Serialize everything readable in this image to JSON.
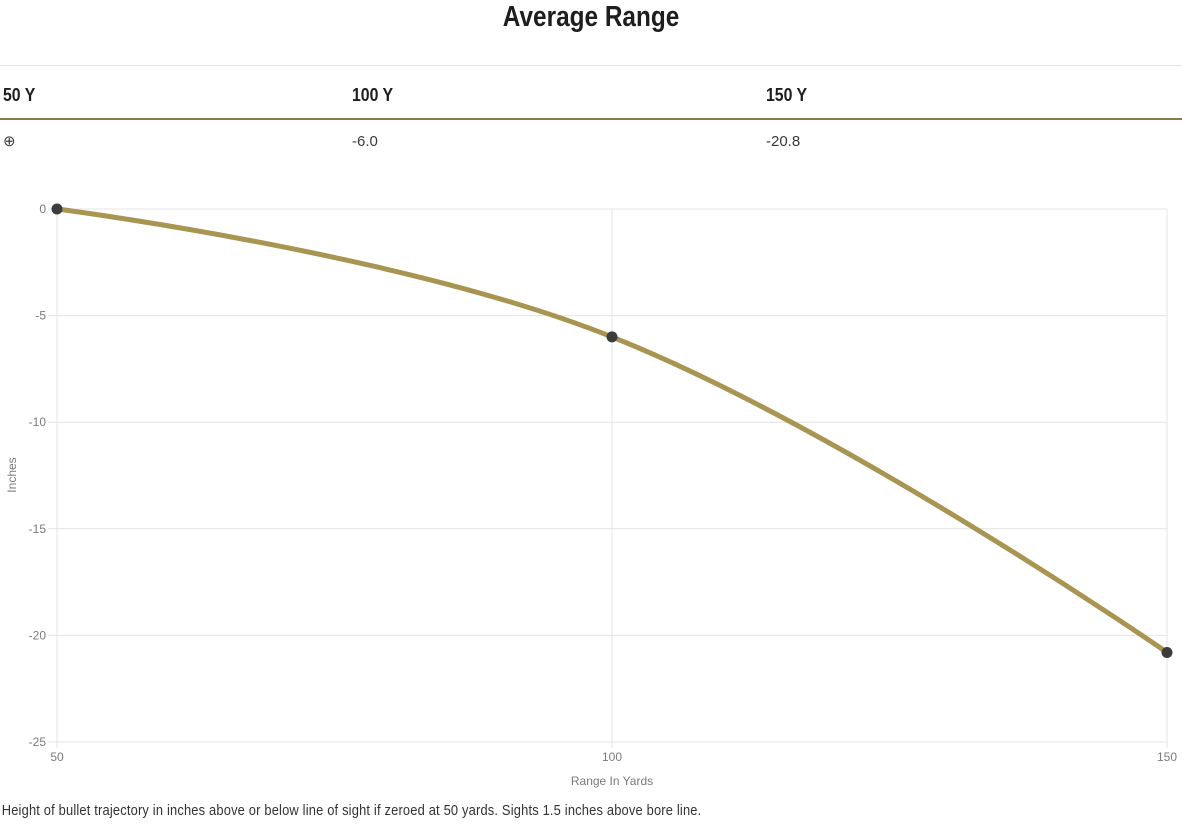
{
  "title": "Average Range",
  "table": {
    "headers": [
      "50 Y",
      "100 Y",
      "150 Y"
    ],
    "values": [
      "⊕",
      "-6.0",
      "-20.8"
    ],
    "zero_symbol_meaning": "zeroed at this range"
  },
  "chart_data": {
    "type": "line",
    "x": [
      50,
      100,
      150
    ],
    "series": [
      {
        "name": "Bullet trajectory",
        "values": [
          0,
          -6.0,
          -20.8
        ]
      }
    ],
    "xlabel": "Range In Yards",
    "ylabel": "Inches",
    "xlim": [
      50,
      150
    ],
    "ylim": [
      -25,
      0
    ],
    "xticks": [
      "50",
      "100",
      "150"
    ],
    "xtick_values": [
      50,
      100,
      150
    ],
    "yticks": [
      "0",
      "-5",
      "-10",
      "-15",
      "-20",
      "-25"
    ],
    "ytick_values": [
      0,
      -5,
      -10,
      -15,
      -20,
      -25
    ],
    "grid": true,
    "legend_position": "none",
    "line_color": "#A89552",
    "marker_color": "#3C3C3C",
    "gridline_color": "#E4E4E4",
    "tick_label_color": "#7A7A7A",
    "line_width": 5,
    "marker_radius": 5.5,
    "curve_tension": 0.4
  },
  "footnote": "Height of bullet trajectory in inches above or below line of sight if zeroed at 50 yards. Sights 1.5 inches above bore line.",
  "colors": {
    "divider": "#8A7C51",
    "top_rule": "#E7E7E7",
    "heading_text": "#1E1E1E",
    "value_text": "#3A3A3A"
  }
}
